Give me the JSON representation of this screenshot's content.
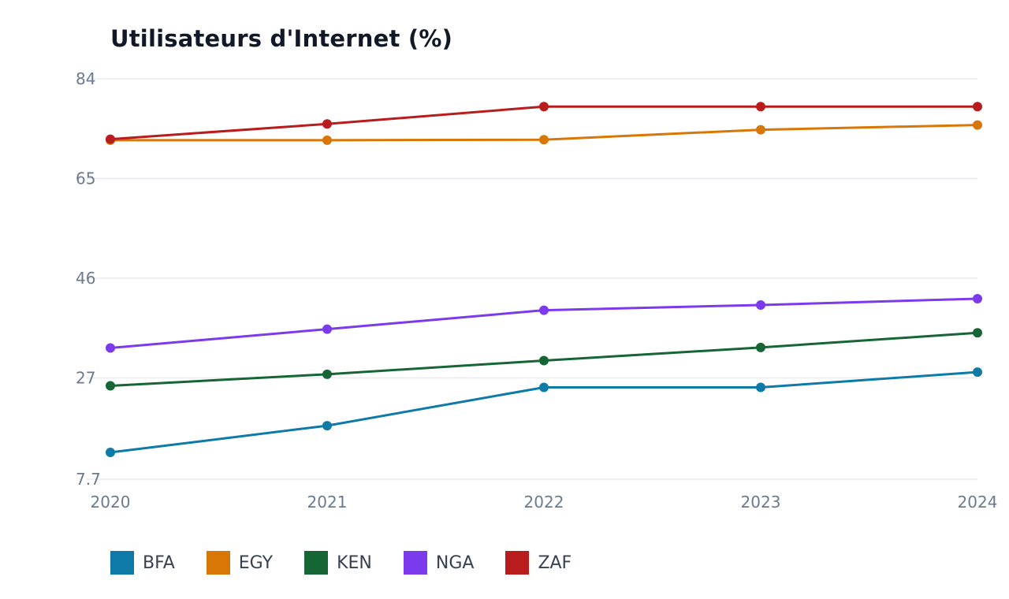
{
  "chart_data": {
    "type": "line",
    "title": "Utilisateurs d'Internet (%)",
    "xlabel": "",
    "ylabel": "",
    "x": [
      "2020",
      "2021",
      "2022",
      "2023",
      "2024"
    ],
    "y_ticks": [
      "84",
      "65",
      "46",
      "27",
      "7.7"
    ],
    "y_tick_values": [
      84,
      65,
      46,
      27,
      7.7
    ],
    "ylim": [
      7.7,
      84
    ],
    "grid": true,
    "legend_position": "bottom-left",
    "series": [
      {
        "name": "BFA",
        "color": "#0e7aa8",
        "values": [
          12.8,
          17.9,
          25.2,
          25.2,
          28.1
        ]
      },
      {
        "name": "EGY",
        "color": "#d97706",
        "values": [
          72.3,
          72.3,
          72.4,
          74.3,
          75.2
        ]
      },
      {
        "name": "KEN",
        "color": "#166534",
        "values": [
          25.5,
          27.7,
          30.3,
          32.8,
          35.6
        ]
      },
      {
        "name": "NGA",
        "color": "#7c3aed",
        "values": [
          32.7,
          36.3,
          39.9,
          40.9,
          42.1
        ]
      },
      {
        "name": "ZAF",
        "color": "#b91c1c",
        "values": [
          72.5,
          75.4,
          78.7,
          78.7,
          78.7
        ]
      }
    ]
  }
}
